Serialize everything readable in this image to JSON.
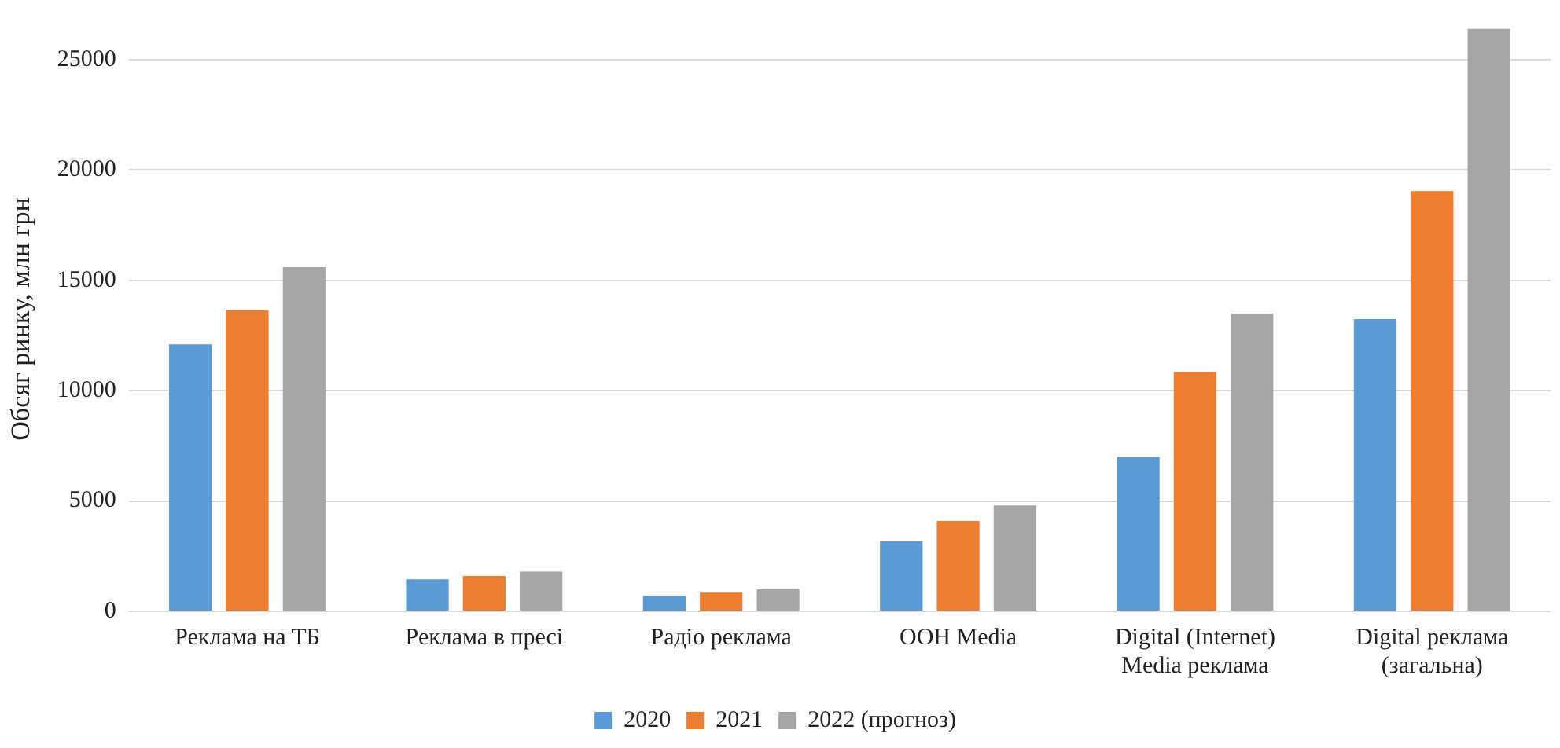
{
  "chart_data": {
    "type": "bar",
    "ylabel": "Обсяг ринку, млн грн",
    "categories": [
      "Реклама на ТБ",
      "Реклама в пресі",
      "Радіо реклама",
      "OOH Media",
      "Digital (Internet)\nMedia реклама",
      "Digital реклама\n(загальна)"
    ],
    "series": [
      {
        "name": "2020",
        "color": "#5b9bd5",
        "values": [
          12100,
          1450,
          700,
          3200,
          7000,
          13250
        ]
      },
      {
        "name": "2021",
        "color": "#ed7d31",
        "values": [
          13650,
          1600,
          850,
          4100,
          10850,
          19050
        ]
      },
      {
        "name": "2022 (прогноз)",
        "color": "#a5a5a5",
        "values": [
          15600,
          1800,
          1000,
          4800,
          13500,
          26400
        ]
      }
    ],
    "ylim": [
      0,
      26500
    ],
    "yticks": [
      0,
      5000,
      10000,
      15000,
      20000,
      25000
    ],
    "grid": "y",
    "legend": "bottom"
  }
}
